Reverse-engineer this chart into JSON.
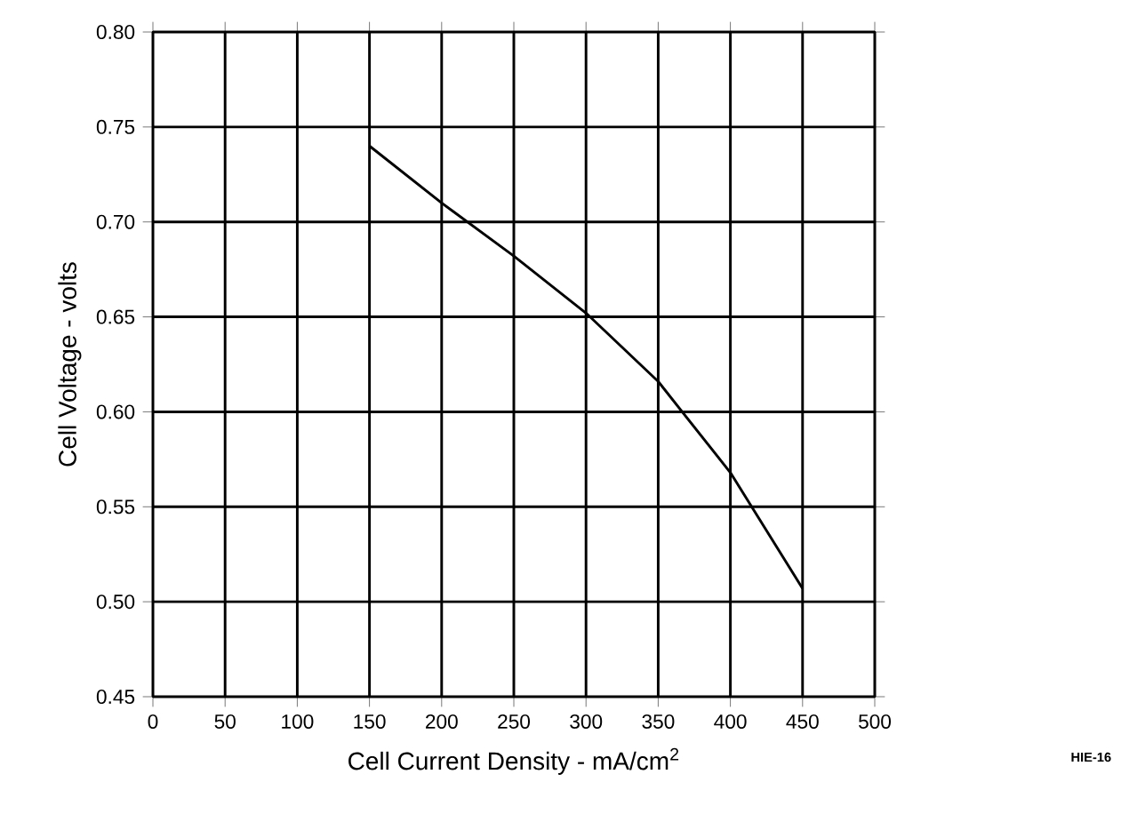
{
  "chart_data": {
    "type": "line",
    "xlabel": "Cell Current Density - mA/cm$^{2}$",
    "ylabel": "Cell Voltage - volts",
    "x": [
      150,
      200,
      250,
      300,
      350,
      400,
      450
    ],
    "values": [
      0.74,
      0.71,
      0.682,
      0.652,
      0.616,
      0.568,
      0.507
    ],
    "color": "#000000",
    "xlim": [
      0,
      500
    ],
    "ylim": [
      0.45,
      0.8
    ],
    "xticks": [
      0,
      50,
      100,
      150,
      200,
      250,
      300,
      350,
      400,
      450,
      500
    ],
    "yticks": [
      {
        "value": 0.45,
        "label": "0.45"
      },
      {
        "value": 0.5,
        "label": "0.50"
      },
      {
        "value": 0.55,
        "label": "0.55"
      },
      {
        "value": 0.6,
        "label": "0.60"
      },
      {
        "value": 0.65,
        "label": "0.65"
      },
      {
        "value": 0.7,
        "label": "0.70"
      },
      {
        "value": 0.75,
        "label": "0.75"
      },
      {
        "value": 0.8,
        "label": "0.80"
      }
    ],
    "grid": true,
    "annotations": [
      "HIE-16"
    ]
  }
}
